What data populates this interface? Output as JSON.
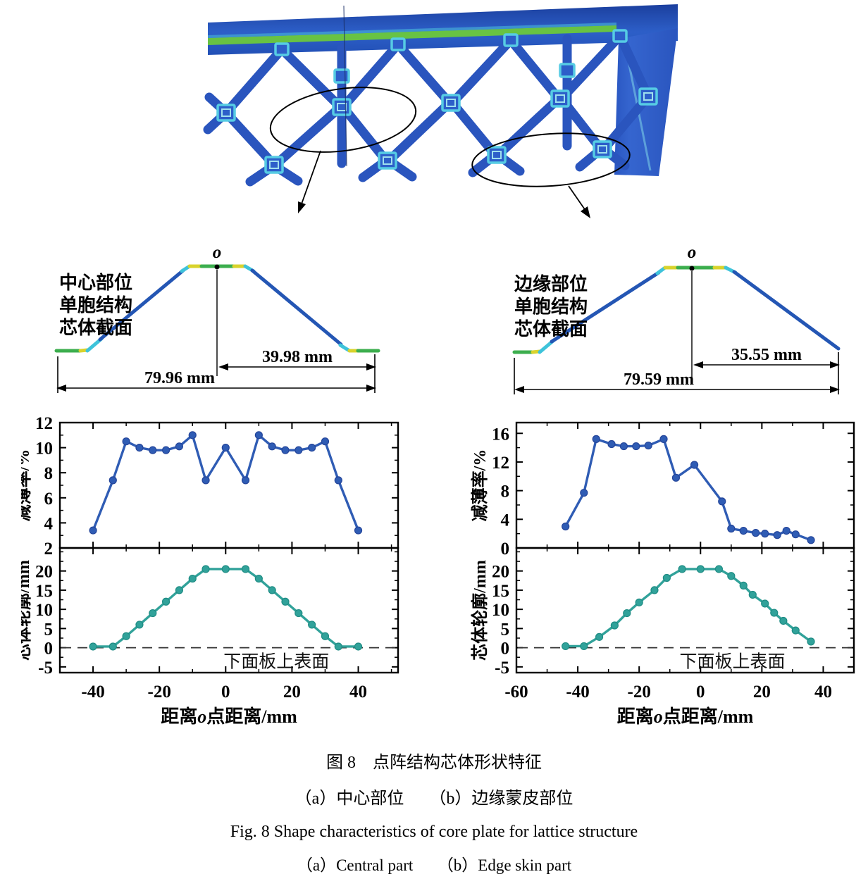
{
  "figure_captions": {
    "title_zh": "图 8　点阵结构芯体形状特征",
    "subtitle_zh": "（a）中心部位　　（b）边缘蒙皮部位",
    "title_en": "Fig. 8   Shape characteristics of core plate for lattice structure",
    "subtitle_en": "（a）Central part　　（b）Edge skin part"
  },
  "cross_sections": {
    "left": {
      "label_lines": [
        "中心部位",
        "单胞结构",
        "芯体截面"
      ],
      "origin": "o",
      "dim_half": "39.98 mm",
      "dim_full": "79.96 mm"
    },
    "right": {
      "label_lines": [
        "边缘部位",
        "单胞结构",
        "芯体截面"
      ],
      "origin": "o",
      "dim_half": "35.55 mm",
      "dim_full": "79.59 mm"
    }
  },
  "colors": {
    "blue": "#2f5cb4",
    "blue_dark": "#24459a",
    "teal": "#31a29a",
    "teal_dark": "#1f8c84",
    "axis": "#000000",
    "profile_blue": "#2456b4",
    "profile_green": "#3cae4e",
    "profile_cyan": "#3ec3da",
    "profile_yellow": "#d9d32c",
    "lattice_strut": "#2a55be",
    "lattice_node_border": "#56cce4"
  },
  "columns": [
    {
      "id": "col-center",
      "charts": [
        "center-thinning",
        "center-profile"
      ]
    },
    {
      "id": "col-edge",
      "charts": [
        "edge-thinning",
        "edge-profile"
      ]
    }
  ],
  "chart_data": [
    {
      "id": "center-thinning",
      "type": "line",
      "panel": "left-top",
      "ylabel": "减薄率/%",
      "ylim": [
        2,
        12
      ],
      "yticks": [
        2,
        4,
        6,
        8,
        10,
        12
      ],
      "yminor_step": 1,
      "xlim": [
        -50,
        52
      ],
      "xticks": [
        -40,
        -20,
        0,
        20,
        40
      ],
      "xminor_step": 10,
      "x": [
        -40,
        -34,
        -30,
        -26,
        -22,
        -18,
        -14,
        -10,
        -6,
        0,
        6,
        10,
        14,
        18,
        22,
        26,
        30,
        34,
        40
      ],
      "y": [
        3.4,
        7.4,
        10.5,
        10.0,
        9.8,
        9.8,
        10.1,
        11.0,
        7.4,
        10.0,
        7.4,
        11.0,
        10.1,
        9.8,
        9.8,
        10.0,
        10.5,
        7.4,
        3.4
      ],
      "color_key": "blue"
    },
    {
      "id": "center-profile",
      "type": "line",
      "panel": "left-bottom",
      "ylabel": "芯体轮廓/mm",
      "ylim": [
        -6.5,
        26
      ],
      "yticks": [
        -5,
        0,
        5,
        10,
        15,
        20
      ],
      "yminor_step": 2.5,
      "xlim": [
        -50,
        52
      ],
      "xticks": [
        -40,
        -20,
        0,
        20,
        40
      ],
      "xminor_step": 10,
      "xlabel": {
        "pre": "距离",
        "italic": "o",
        "post": "点距离/mm"
      },
      "x": [
        -40,
        -34,
        -30,
        -26,
        -22,
        -18,
        -14,
        -10,
        -6,
        0,
        6,
        10,
        14,
        18,
        22,
        26,
        30,
        34,
        40
      ],
      "y": [
        0.3,
        0.3,
        3.0,
        6.0,
        9.0,
        12.0,
        15.0,
        18.0,
        20.5,
        20.5,
        20.5,
        18.0,
        15.0,
        12.0,
        9.0,
        6.0,
        3.0,
        0.3,
        0.3
      ],
      "zero_dash": true,
      "zero_annotation": "下面板上表面",
      "color_key": "teal"
    },
    {
      "id": "edge-thinning",
      "type": "line",
      "panel": "right-top",
      "ylabel": "减薄率/%",
      "ylim": [
        0,
        17.5
      ],
      "yticks": [
        0,
        4,
        8,
        12,
        16
      ],
      "yminor_step": 2,
      "xlim": [
        -60,
        50
      ],
      "xticks": [
        -60,
        -40,
        -20,
        0,
        20,
        40
      ],
      "xminor_step": 10,
      "x": [
        -44,
        -38,
        -34,
        -29,
        -25,
        -21,
        -17,
        -12,
        -8,
        -2,
        7,
        10,
        14,
        18,
        21,
        25,
        28,
        31,
        36
      ],
      "y": [
        3.0,
        7.7,
        15.2,
        14.5,
        14.2,
        14.2,
        14.3,
        15.2,
        9.8,
        11.6,
        6.5,
        2.7,
        2.4,
        2.1,
        2.0,
        1.8,
        2.4,
        1.9,
        1.1
      ],
      "color_key": "blue"
    },
    {
      "id": "edge-profile",
      "type": "line",
      "panel": "right-bottom",
      "ylabel": "芯体轮廓/mm",
      "ylim": [
        -6.5,
        26
      ],
      "yticks": [
        -5,
        0,
        5,
        10,
        15,
        20
      ],
      "yminor_step": 2.5,
      "xlim": [
        -60,
        50
      ],
      "xticks": [
        -60,
        -40,
        -20,
        0,
        20,
        40
      ],
      "xminor_step": 10,
      "xlabel": {
        "pre": "距离",
        "italic": "o",
        "post": "点距离/mm"
      },
      "x": [
        -44,
        -38,
        -33,
        -28,
        -24,
        -20,
        -15,
        -11,
        -6,
        0,
        6,
        10,
        14,
        17,
        21,
        24,
        27,
        31,
        36
      ],
      "y": [
        0.4,
        0.4,
        2.8,
        5.8,
        9.0,
        11.8,
        15.0,
        18.2,
        20.5,
        20.5,
        20.5,
        18.7,
        16.2,
        13.8,
        11.5,
        9.1,
        7.0,
        4.5,
        1.6
      ],
      "zero_dash": true,
      "zero_annotation": "下面板上表面",
      "color_key": "teal"
    }
  ]
}
